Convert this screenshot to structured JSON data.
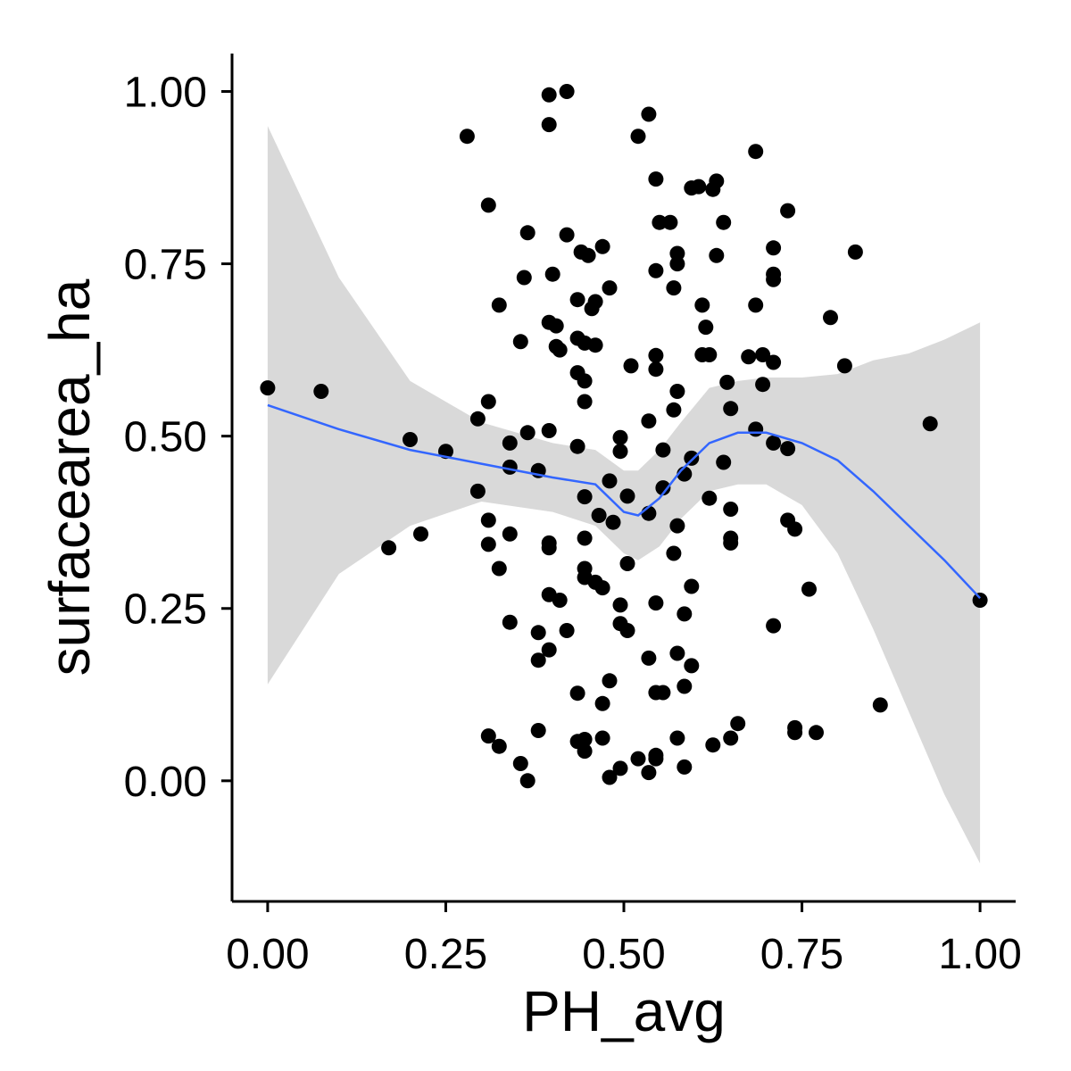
{
  "chart_data": {
    "type": "scatter",
    "xlabel": "PH_avg",
    "ylabel": "surfacearea_ha",
    "xlim": [
      -0.05,
      1.05
    ],
    "ylim": [
      -0.175,
      1.055
    ],
    "x_ticks": [
      "0.00",
      "0.25",
      "0.50",
      "0.75",
      "1.00"
    ],
    "y_ticks": [
      "0.00",
      "0.25",
      "0.50",
      "0.75",
      "1.00"
    ],
    "grid": false,
    "colors": {
      "points": "#000000",
      "smooth_line": "#3366FF",
      "ribbon": "#d9d9d9",
      "axis": "#000000"
    },
    "smooth": {
      "x": [
        0.0,
        0.1,
        0.2,
        0.3,
        0.4,
        0.46,
        0.5,
        0.52,
        0.55,
        0.58,
        0.62,
        0.66,
        0.7,
        0.75,
        0.8,
        0.85,
        0.9,
        0.95,
        1.0
      ],
      "y": [
        0.545,
        0.51,
        0.48,
        0.46,
        0.44,
        0.43,
        0.39,
        0.385,
        0.41,
        0.45,
        0.49,
        0.505,
        0.505,
        0.49,
        0.465,
        0.42,
        0.37,
        0.32,
        0.265
      ],
      "lower": [
        0.14,
        0.3,
        0.37,
        0.405,
        0.39,
        0.37,
        0.33,
        0.32,
        0.34,
        0.38,
        0.42,
        0.43,
        0.43,
        0.4,
        0.33,
        0.22,
        0.1,
        -0.02,
        -0.12
      ],
      "upper": [
        0.95,
        0.73,
        0.58,
        0.52,
        0.49,
        0.48,
        0.45,
        0.45,
        0.48,
        0.52,
        0.57,
        0.58,
        0.585,
        0.585,
        0.59,
        0.61,
        0.62,
        0.64,
        0.665
      ]
    },
    "points": [
      [
        0.0,
        0.57
      ],
      [
        0.075,
        0.565
      ],
      [
        0.17,
        0.338
      ],
      [
        0.2,
        0.495
      ],
      [
        0.215,
        0.358
      ],
      [
        0.25,
        0.478
      ],
      [
        0.28,
        0.935
      ],
      [
        0.295,
        0.525
      ],
      [
        0.295,
        0.42
      ],
      [
        0.31,
        0.835
      ],
      [
        0.31,
        0.55
      ],
      [
        0.31,
        0.378
      ],
      [
        0.31,
        0.343
      ],
      [
        0.31,
        0.065
      ],
      [
        0.325,
        0.69
      ],
      [
        0.325,
        0.308
      ],
      [
        0.325,
        0.05
      ],
      [
        0.34,
        0.49
      ],
      [
        0.34,
        0.455
      ],
      [
        0.34,
        0.358
      ],
      [
        0.34,
        0.23
      ],
      [
        0.355,
        0.637
      ],
      [
        0.355,
        0.025
      ],
      [
        0.36,
        0.73
      ],
      [
        0.365,
        0.795
      ],
      [
        0.365,
        0.505
      ],
      [
        0.365,
        0.0
      ],
      [
        0.38,
        0.45
      ],
      [
        0.38,
        0.215
      ],
      [
        0.38,
        0.175
      ],
      [
        0.38,
        0.073
      ],
      [
        0.395,
        0.995
      ],
      [
        0.395,
        0.952
      ],
      [
        0.395,
        0.665
      ],
      [
        0.395,
        0.508
      ],
      [
        0.395,
        0.345
      ],
      [
        0.395,
        0.338
      ],
      [
        0.395,
        0.27
      ],
      [
        0.395,
        0.19
      ],
      [
        0.4,
        0.735
      ],
      [
        0.405,
        0.66
      ],
      [
        0.405,
        0.63
      ],
      [
        0.41,
        0.625
      ],
      [
        0.41,
        0.262
      ],
      [
        0.42,
        1.0
      ],
      [
        0.42,
        0.792
      ],
      [
        0.42,
        0.218
      ],
      [
        0.435,
        0.698
      ],
      [
        0.435,
        0.642
      ],
      [
        0.435,
        0.592
      ],
      [
        0.435,
        0.485
      ],
      [
        0.435,
        0.127
      ],
      [
        0.435,
        0.057
      ],
      [
        0.44,
        0.767
      ],
      [
        0.445,
        0.635
      ],
      [
        0.445,
        0.58
      ],
      [
        0.445,
        0.55
      ],
      [
        0.445,
        0.412
      ],
      [
        0.445,
        0.352
      ],
      [
        0.445,
        0.308
      ],
      [
        0.445,
        0.295
      ],
      [
        0.445,
        0.06
      ],
      [
        0.445,
        0.043
      ],
      [
        0.45,
        0.762
      ],
      [
        0.455,
        0.685
      ],
      [
        0.46,
        0.695
      ],
      [
        0.46,
        0.632
      ],
      [
        0.46,
        0.288
      ],
      [
        0.465,
        0.385
      ],
      [
        0.47,
        0.775
      ],
      [
        0.47,
        0.28
      ],
      [
        0.47,
        0.112
      ],
      [
        0.47,
        0.062
      ],
      [
        0.48,
        0.715
      ],
      [
        0.48,
        0.435
      ],
      [
        0.48,
        0.145
      ],
      [
        0.48,
        0.005
      ],
      [
        0.485,
        0.375
      ],
      [
        0.495,
        0.498
      ],
      [
        0.495,
        0.478
      ],
      [
        0.495,
        0.255
      ],
      [
        0.495,
        0.228
      ],
      [
        0.495,
        0.018
      ],
      [
        0.505,
        0.413
      ],
      [
        0.505,
        0.315
      ],
      [
        0.505,
        0.218
      ],
      [
        0.51,
        0.602
      ],
      [
        0.52,
        0.935
      ],
      [
        0.52,
        0.032
      ],
      [
        0.535,
        0.967
      ],
      [
        0.535,
        0.522
      ],
      [
        0.535,
        0.388
      ],
      [
        0.535,
        0.178
      ],
      [
        0.535,
        0.012
      ],
      [
        0.545,
        0.873
      ],
      [
        0.545,
        0.74
      ],
      [
        0.545,
        0.617
      ],
      [
        0.545,
        0.597
      ],
      [
        0.545,
        0.258
      ],
      [
        0.545,
        0.128
      ],
      [
        0.545,
        0.037
      ],
      [
        0.545,
        0.032
      ],
      [
        0.55,
        0.81
      ],
      [
        0.555,
        0.48
      ],
      [
        0.555,
        0.425
      ],
      [
        0.555,
        0.128
      ],
      [
        0.565,
        0.81
      ],
      [
        0.57,
        0.715
      ],
      [
        0.57,
        0.538
      ],
      [
        0.57,
        0.33
      ],
      [
        0.575,
        0.765
      ],
      [
        0.575,
        0.75
      ],
      [
        0.575,
        0.565
      ],
      [
        0.575,
        0.37
      ],
      [
        0.575,
        0.185
      ],
      [
        0.575,
        0.062
      ],
      [
        0.585,
        0.445
      ],
      [
        0.585,
        0.242
      ],
      [
        0.585,
        0.137
      ],
      [
        0.585,
        0.02
      ],
      [
        0.595,
        0.86
      ],
      [
        0.595,
        0.468
      ],
      [
        0.595,
        0.282
      ],
      [
        0.595,
        0.167
      ],
      [
        0.605,
        0.862
      ],
      [
        0.61,
        0.618
      ],
      [
        0.61,
        0.69
      ],
      [
        0.615,
        0.658
      ],
      [
        0.62,
        0.618
      ],
      [
        0.62,
        0.41
      ],
      [
        0.625,
        0.858
      ],
      [
        0.625,
        0.052
      ],
      [
        0.63,
        0.87
      ],
      [
        0.63,
        0.762
      ],
      [
        0.64,
        0.81
      ],
      [
        0.64,
        0.462
      ],
      [
        0.645,
        0.578
      ],
      [
        0.65,
        0.54
      ],
      [
        0.65,
        0.394
      ],
      [
        0.65,
        0.352
      ],
      [
        0.65,
        0.345
      ],
      [
        0.65,
        0.062
      ],
      [
        0.66,
        0.083
      ],
      [
        0.675,
        0.615
      ],
      [
        0.685,
        0.913
      ],
      [
        0.685,
        0.69
      ],
      [
        0.685,
        0.51
      ],
      [
        0.695,
        0.618
      ],
      [
        0.695,
        0.575
      ],
      [
        0.71,
        0.773
      ],
      [
        0.71,
        0.735
      ],
      [
        0.71,
        0.727
      ],
      [
        0.71,
        0.607
      ],
      [
        0.71,
        0.49
      ],
      [
        0.71,
        0.225
      ],
      [
        0.73,
        0.827
      ],
      [
        0.73,
        0.482
      ],
      [
        0.73,
        0.378
      ],
      [
        0.74,
        0.365
      ],
      [
        0.74,
        0.077
      ],
      [
        0.74,
        0.07
      ],
      [
        0.76,
        0.278
      ],
      [
        0.77,
        0.07
      ],
      [
        0.79,
        0.672
      ],
      [
        0.81,
        0.602
      ],
      [
        0.825,
        0.767
      ],
      [
        0.86,
        0.11
      ],
      [
        0.93,
        0.518
      ],
      [
        1.0,
        0.262
      ]
    ]
  }
}
